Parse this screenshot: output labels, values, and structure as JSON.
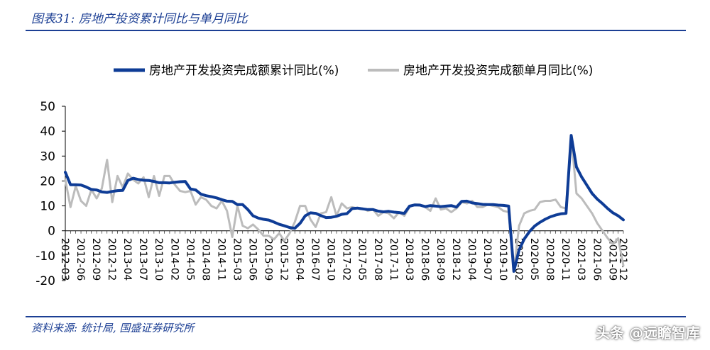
{
  "figure_title": "图表31: 房地产投资累计同比与单月同比",
  "source": "资料来源: 统计局, 国盛证券研究所",
  "watermark": "头条 @远瞻智库",
  "colors": {
    "cumulative": "#0e3c96",
    "monthly": "#bcbcbc",
    "accent": "#1c3f94"
  },
  "chart_data": {
    "type": "line",
    "title": "",
    "xlabel": "",
    "ylabel": "",
    "ylim": [
      -20,
      50
    ],
    "yticks": [
      -20,
      -10,
      0,
      10,
      20,
      30,
      40,
      50
    ],
    "legend_position": "top",
    "grid": false,
    "x_tick_labels": [
      "2012-03",
      "2012-06",
      "2012-09",
      "2012-12",
      "2013-04",
      "2013-07",
      "2013-10",
      "2014-02",
      "2014-05",
      "2014-08",
      "2014-11",
      "2015-03",
      "2015-06",
      "2015-09",
      "2015-12",
      "2016-04",
      "2016-07",
      "2016-10",
      "2017-02",
      "2017-05",
      "2017-08",
      "2017-11",
      "2018-03",
      "2018-06",
      "2018-09",
      "2018-12",
      "2019-04",
      "2019-07",
      "2019-10",
      "2020-02",
      "2020-05",
      "2020-08",
      "2020-11",
      "2021-03",
      "2021-06",
      "2021-09",
      "2021-12"
    ],
    "series": [
      {
        "name": "房地产开发投资完成额累计同比(%)",
        "values": [
          23.5,
          18.5,
          18.5,
          18.4,
          17.6,
          16.6,
          16.4,
          15.6,
          15.4,
          15.8,
          16.1,
          16.2,
          20.2,
          21.1,
          20.6,
          20.3,
          20.2,
          19.8,
          19.3,
          19.3,
          19.2,
          19.5,
          19.7,
          19.8,
          16.8,
          16.4,
          14.7,
          14.1,
          13.7,
          13.2,
          12.5,
          11.9,
          11.8,
          10.5,
          10.5,
          8.5,
          6.0,
          5.1,
          4.6,
          4.3,
          3.5,
          2.6,
          2.0,
          1.3,
          1.0,
          3.0,
          6.0,
          7.2,
          7.0,
          6.1,
          5.3,
          5.4,
          5.8,
          6.6,
          6.9,
          8.9,
          9.1,
          8.8,
          8.5,
          8.5,
          7.9,
          7.6,
          7.8,
          7.5,
          7.3,
          7.0,
          9.9,
          10.4,
          10.3,
          9.7,
          10.1,
          9.9,
          9.7,
          9.9,
          10.1,
          9.5,
          11.8,
          11.9,
          11.2,
          10.9,
          10.6,
          10.5,
          10.5,
          10.3,
          10.2,
          9.9,
          -16.3,
          -7.7,
          -3.3,
          -0.3,
          1.9,
          3.4,
          4.6,
          5.6,
          6.3,
          6.8,
          7.0,
          38.3,
          25.6,
          21.6,
          18.3,
          15.0,
          12.7,
          10.9,
          8.9,
          7.2,
          6.0,
          4.4
        ]
      },
      {
        "name": "房地产开发投资完成额单月同比(%)",
        "values": [
          20.5,
          9.5,
          18.0,
          12.0,
          10.0,
          16.5,
          13.0,
          17.0,
          28.5,
          11.5,
          22.0,
          17.5,
          23.0,
          20.5,
          19.0,
          21.5,
          13.5,
          22.0,
          14.0,
          22.0,
          22.0,
          18.5,
          16.0,
          15.5,
          16.0,
          10.5,
          13.5,
          12.5,
          10.0,
          9.0,
          12.0,
          8.0,
          -2.5,
          10.0,
          2.0,
          1.0,
          2.5,
          0.5,
          -2.0,
          -2.0,
          -3.5,
          -1.0,
          -4.0,
          -1.0,
          3.5,
          10.0,
          10.0,
          4.5,
          1.5,
          7.0,
          7.5,
          13.5,
          6.0,
          11.0,
          9.0,
          9.5,
          9.0,
          9.0,
          8.0,
          8.5,
          6.0,
          7.5,
          7.0,
          5.0,
          7.5,
          6.0,
          9.5,
          10.5,
          10.5,
          9.5,
          8.0,
          13.0,
          8.5,
          9.0,
          7.5,
          9.0,
          11.5,
          11.0,
          12.0,
          9.5,
          9.5,
          10.5,
          10.0,
          9.5,
          8.0,
          7.5,
          -16.3,
          2.0,
          7.0,
          8.0,
          8.5,
          11.5,
          12.0,
          12.0,
          12.5,
          9.5,
          9.0,
          38.3,
          15.0,
          13.0,
          10.0,
          7.0,
          3.0,
          0.0,
          -3.0,
          -5.5,
          -3.0,
          -14.0
        ]
      }
    ]
  }
}
